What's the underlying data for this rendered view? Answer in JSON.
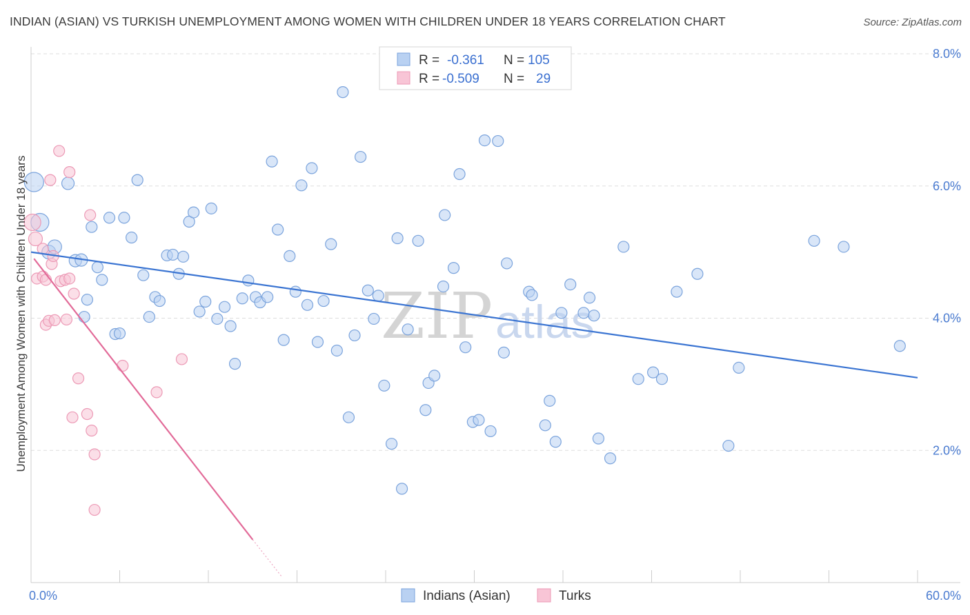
{
  "title": "INDIAN (ASIAN) VS TURKISH UNEMPLOYMENT AMONG WOMEN WITH CHILDREN UNDER 18 YEARS CORRELATION CHART",
  "source": "Source: ZipAtlas.com",
  "watermark": {
    "zip": "ZIP",
    "atlas": "atlas"
  },
  "legend": {
    "rows": [
      {
        "r_label": "R =",
        "r_value": "-0.361",
        "n_label": "N =",
        "n_value": "105"
      },
      {
        "r_label": "R =",
        "r_value": "-0.509",
        "n_label": "N =",
        "n_value": "29"
      }
    ]
  },
  "colors": {
    "indians_fill": "#b9d1f2",
    "indians_stroke": "#7aa3dc",
    "indians_line": "#3a74d2",
    "turks_fill": "#f8c5d6",
    "turks_stroke": "#ec99b5",
    "turks_line": "#e26a98",
    "grid": "#dddddd",
    "axis_text": "#4a7bd0"
  },
  "chart_data": {
    "type": "scatter",
    "ylabel": "Unemployment Among Women with Children Under 18 years",
    "xlabel": "",
    "xlim": [
      0,
      60
    ],
    "ylim": [
      0,
      8
    ],
    "x_tick_labels": [
      "0.0%",
      "60.0%"
    ],
    "y_ticks": [
      2,
      4,
      6,
      8
    ],
    "y_tick_labels": [
      "2.0%",
      "4.0%",
      "6.0%",
      "8.0%"
    ],
    "grid": true,
    "legend_position": "top-center",
    "series": [
      {
        "name": "Indians (Asian)",
        "color": "#b9d1f2",
        "trendline": {
          "x": [
            0,
            60
          ],
          "y": [
            5.0,
            3.1
          ]
        },
        "points": [
          [
            0.2,
            6.06,
            14
          ],
          [
            0.6,
            5.45,
            13
          ],
          [
            1.2,
            5.0,
            10
          ],
          [
            1.6,
            5.08,
            10
          ],
          [
            2.5,
            6.04,
            9
          ],
          [
            3.0,
            4.87,
            9
          ],
          [
            3.4,
            4.88,
            9
          ],
          [
            3.6,
            4.02,
            8
          ],
          [
            3.8,
            4.28,
            8
          ],
          [
            4.1,
            5.38,
            8
          ],
          [
            4.5,
            4.77,
            8
          ],
          [
            4.8,
            4.58,
            8
          ],
          [
            5.3,
            5.52,
            8
          ],
          [
            5.7,
            3.76,
            8
          ],
          [
            6.0,
            3.77,
            8
          ],
          [
            6.3,
            5.52,
            8
          ],
          [
            6.8,
            5.22,
            8
          ],
          [
            7.2,
            6.09,
            8
          ],
          [
            7.6,
            4.65,
            8
          ],
          [
            8.0,
            4.02,
            8
          ],
          [
            8.4,
            4.32,
            8
          ],
          [
            8.7,
            4.26,
            8
          ],
          [
            9.2,
            4.95,
            8
          ],
          [
            9.6,
            4.96,
            8
          ],
          [
            10.0,
            4.67,
            8
          ],
          [
            10.3,
            4.93,
            8
          ],
          [
            10.7,
            5.46,
            8
          ],
          [
            11.0,
            5.6,
            8
          ],
          [
            11.4,
            4.1,
            8
          ],
          [
            11.8,
            4.25,
            8
          ],
          [
            12.2,
            5.66,
            8
          ],
          [
            12.6,
            3.99,
            8
          ],
          [
            13.1,
            4.17,
            8
          ],
          [
            13.5,
            3.88,
            8
          ],
          [
            13.8,
            3.31,
            8
          ],
          [
            14.3,
            4.3,
            8
          ],
          [
            14.7,
            4.57,
            8
          ],
          [
            15.2,
            4.32,
            8
          ],
          [
            15.5,
            4.24,
            8
          ],
          [
            16.0,
            4.32,
            8
          ],
          [
            16.3,
            6.37,
            8
          ],
          [
            16.7,
            5.34,
            8
          ],
          [
            17.1,
            3.67,
            8
          ],
          [
            17.5,
            4.94,
            8
          ],
          [
            17.9,
            4.4,
            8
          ],
          [
            18.3,
            6.01,
            8
          ],
          [
            18.7,
            4.2,
            8
          ],
          [
            19.0,
            6.27,
            8
          ],
          [
            19.4,
            3.64,
            8
          ],
          [
            19.8,
            4.26,
            8
          ],
          [
            20.3,
            5.12,
            8
          ],
          [
            20.7,
            3.51,
            8
          ],
          [
            21.1,
            7.42,
            8
          ],
          [
            21.5,
            2.5,
            8
          ],
          [
            21.9,
            3.74,
            8
          ],
          [
            22.3,
            6.44,
            8
          ],
          [
            22.8,
            4.42,
            8
          ],
          [
            23.2,
            3.99,
            8
          ],
          [
            23.5,
            4.34,
            8
          ],
          [
            23.9,
            2.98,
            8
          ],
          [
            24.4,
            2.1,
            8
          ],
          [
            24.8,
            5.21,
            8
          ],
          [
            25.1,
            1.42,
            8
          ],
          [
            25.5,
            3.83,
            8
          ],
          [
            26.2,
            5.17,
            8
          ],
          [
            26.7,
            2.61,
            8
          ],
          [
            26.9,
            3.02,
            8
          ],
          [
            27.3,
            3.13,
            8
          ],
          [
            27.9,
            4.48,
            8
          ],
          [
            28.0,
            5.56,
            8
          ],
          [
            28.6,
            4.76,
            8
          ],
          [
            29.0,
            6.18,
            8
          ],
          [
            29.4,
            3.56,
            8
          ],
          [
            29.9,
            2.43,
            8
          ],
          [
            30.3,
            2.46,
            8
          ],
          [
            30.7,
            6.69,
            8
          ],
          [
            31.1,
            2.29,
            8
          ],
          [
            31.6,
            6.68,
            8
          ],
          [
            32.0,
            3.48,
            8
          ],
          [
            32.2,
            4.83,
            8
          ],
          [
            33.7,
            4.4,
            8
          ],
          [
            33.9,
            4.35,
            8
          ],
          [
            34.8,
            2.38,
            8
          ],
          [
            35.1,
            2.75,
            8
          ],
          [
            35.5,
            2.13,
            8
          ],
          [
            35.9,
            4.08,
            8
          ],
          [
            36.5,
            4.51,
            8
          ],
          [
            37.4,
            4.08,
            8
          ],
          [
            37.8,
            4.31,
            8
          ],
          [
            38.1,
            4.04,
            8
          ],
          [
            38.4,
            2.18,
            8
          ],
          [
            39.2,
            1.88,
            8
          ],
          [
            40.1,
            5.08,
            8
          ],
          [
            41.1,
            3.08,
            8
          ],
          [
            42.1,
            3.18,
            8
          ],
          [
            42.7,
            3.08,
            8
          ],
          [
            43.7,
            4.4,
            8
          ],
          [
            45.1,
            4.67,
            8
          ],
          [
            47.2,
            2.07,
            8
          ],
          [
            47.9,
            3.25,
            8
          ],
          [
            53.0,
            5.17,
            8
          ],
          [
            55.0,
            5.08,
            8
          ],
          [
            58.8,
            3.58,
            8
          ],
          [
            53.3,
            5.17,
            0
          ],
          [
            9.0,
            4.95,
            0
          ]
        ]
      },
      {
        "name": "Turks",
        "color": "#f8c5d6",
        "trendline": {
          "x": [
            0.2,
            15
          ],
          "y": [
            4.9,
            0.65
          ],
          "dashed_to": [
            17,
            0.08
          ]
        },
        "points": [
          [
            0.1,
            5.45,
            12
          ],
          [
            0.3,
            5.2,
            10
          ],
          [
            0.4,
            4.6,
            8
          ],
          [
            0.8,
            5.05,
            8
          ],
          [
            0.8,
            4.63,
            8
          ],
          [
            1.0,
            4.58,
            8
          ],
          [
            1.0,
            3.9,
            8
          ],
          [
            1.2,
            3.96,
            8
          ],
          [
            1.3,
            6.09,
            8
          ],
          [
            1.4,
            4.82,
            8
          ],
          [
            1.5,
            4.94,
            8
          ],
          [
            1.6,
            3.97,
            8
          ],
          [
            1.9,
            6.53,
            8
          ],
          [
            2.0,
            4.56,
            8
          ],
          [
            2.3,
            4.58,
            8
          ],
          [
            2.4,
            3.98,
            8
          ],
          [
            2.6,
            6.21,
            8
          ],
          [
            2.6,
            4.6,
            8
          ],
          [
            2.8,
            2.5,
            8
          ],
          [
            2.9,
            4.37,
            8
          ],
          [
            3.2,
            3.09,
            8
          ],
          [
            3.8,
            2.55,
            8
          ],
          [
            4.0,
            5.56,
            8
          ],
          [
            4.1,
            2.3,
            8
          ],
          [
            4.3,
            1.94,
            8
          ],
          [
            4.3,
            1.1,
            8
          ],
          [
            6.2,
            3.28,
            8
          ],
          [
            8.5,
            2.88,
            8
          ],
          [
            10.2,
            3.38,
            8
          ]
        ]
      }
    ]
  }
}
